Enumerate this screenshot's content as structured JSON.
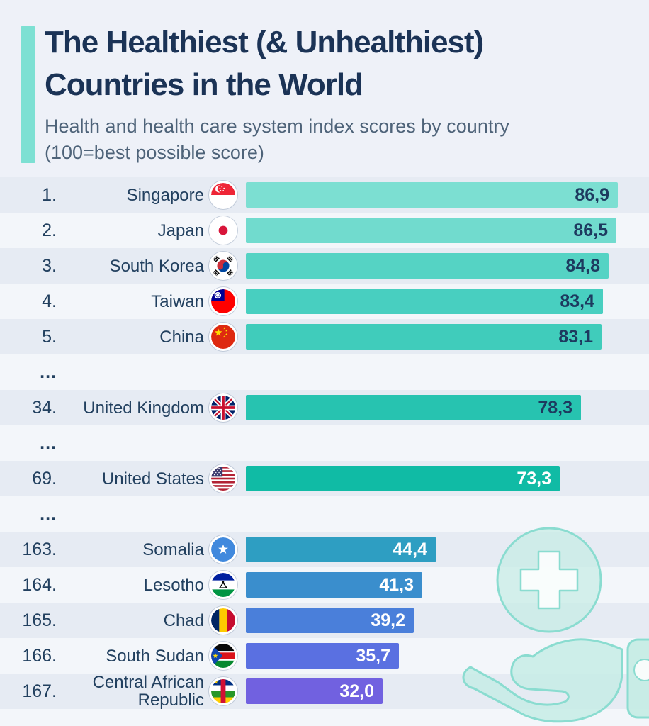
{
  "header": {
    "title_line1": "The Healthiest (& Unhealthiest)",
    "title_line2": "Countries in the World",
    "subtitle_line1": "Health and health care system index scores by country",
    "subtitle_line2": "(100=best possible score)",
    "accent_color": "#7de0d3",
    "title_color": "#1b3356",
    "subtitle_color": "#4e6379"
  },
  "chart_data": {
    "type": "bar",
    "orientation": "horizontal",
    "title": "The Healthiest (& Unhealthiest) Countries in the World",
    "subtitle": "Health and health care system index scores by country (100=best possible score)",
    "xlim": [
      0,
      100
    ],
    "value_format": "comma-decimal",
    "zebra_colors": {
      "dark": "#e6ebf3",
      "light": "#f3f6fa"
    },
    "rows": [
      {
        "rank": "1.",
        "country": "Singapore",
        "value": 86.9,
        "value_label": "86,9",
        "bar_color": "#7cdfd2",
        "value_text_color": "#1d3a5f",
        "flag": "singapore"
      },
      {
        "rank": "2.",
        "country": "Japan",
        "value": 86.5,
        "value_label": "86,5",
        "bar_color": "#71dbce",
        "value_text_color": "#1d3a5f",
        "flag": "japan"
      },
      {
        "rank": "3.",
        "country": "South Korea",
        "value": 84.8,
        "value_label": "84,8",
        "bar_color": "#55d3c4",
        "value_text_color": "#1d3a5f",
        "flag": "south_korea"
      },
      {
        "rank": "4.",
        "country": "Taiwan",
        "value": 83.4,
        "value_label": "83,4",
        "bar_color": "#48cfc0",
        "value_text_color": "#1d3a5f",
        "flag": "taiwan"
      },
      {
        "rank": "5.",
        "country": "China",
        "value": 83.1,
        "value_label": "83,1",
        "bar_color": "#40ccbb",
        "value_text_color": "#1d3a5f",
        "flag": "china"
      },
      {
        "type": "ellipsis",
        "label": "..."
      },
      {
        "rank": "34.",
        "country": "United Kingdom",
        "value": 78.3,
        "value_label": "78,3",
        "bar_color": "#27c3b0",
        "value_text_color": "#1d3a5f",
        "flag": "united_kingdom"
      },
      {
        "type": "ellipsis",
        "label": "..."
      },
      {
        "rank": "69.",
        "country": "United States",
        "value": 73.3,
        "value_label": "73,3",
        "bar_color": "#10bba5",
        "value_text_color": "#ffffff",
        "flag": "united_states"
      },
      {
        "type": "ellipsis",
        "label": "..."
      },
      {
        "rank": "163.",
        "country": "Somalia",
        "value": 44.4,
        "value_label": "44,4",
        "bar_color": "#2e9ec2",
        "value_text_color": "#ffffff",
        "flag": "somalia"
      },
      {
        "rank": "164.",
        "country": "Lesotho",
        "value": 41.3,
        "value_label": "41,3",
        "bar_color": "#3a8ecd",
        "value_text_color": "#ffffff",
        "flag": "lesotho"
      },
      {
        "rank": "165.",
        "country": "Chad",
        "value": 39.2,
        "value_label": "39,2",
        "bar_color": "#4a7fda",
        "value_text_color": "#ffffff",
        "flag": "chad"
      },
      {
        "rank": "166.",
        "country": "South Sudan",
        "value": 35.7,
        "value_label": "35,7",
        "bar_color": "#5a70e1",
        "value_text_color": "#ffffff",
        "flag": "south_sudan"
      },
      {
        "rank": "167.",
        "country": "Central African Republic",
        "value": 32.0,
        "value_label": "32,0",
        "bar_color": "#7161e0",
        "value_text_color": "#ffffff",
        "flag": "central_african_republic"
      }
    ]
  },
  "decor": {
    "icons": [
      "medical-cross-circle-icon",
      "open-hand-icon",
      "sleeve-cuff-icon"
    ],
    "mint_fill": "#c6ece5",
    "mint_stroke": "#8adcd0",
    "cross_fill": "#fbfdfd"
  }
}
